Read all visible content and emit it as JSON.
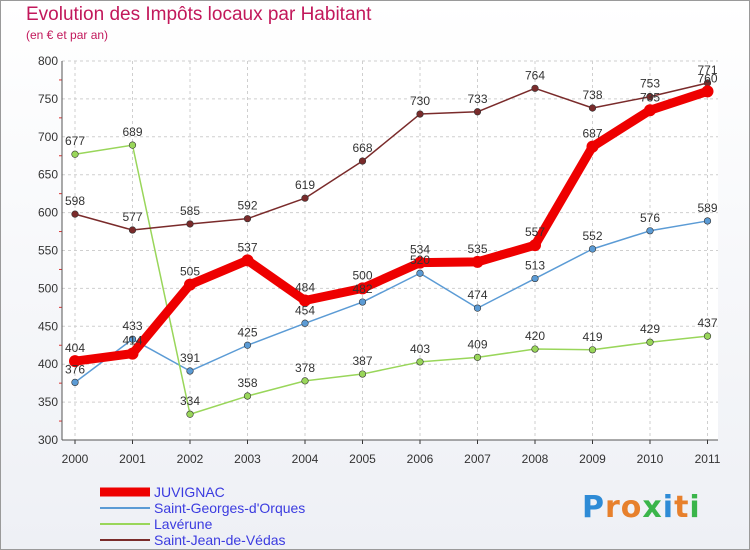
{
  "title": "Evolution des Impôts locaux par Habitant",
  "subtitle": "(en € et par an)",
  "logo": [
    "P",
    "r",
    "o",
    "x",
    "i",
    "t",
    "i"
  ],
  "logo_colors": [
    "#2e8bd6",
    "#e7802c",
    "#e7802c",
    "#3ab54a",
    "#2e8bd6",
    "#e7802c",
    "#3ab54a"
  ],
  "chart_data": {
    "type": "line",
    "title": "Evolution des Impôts locaux par Habitant",
    "subtitle": "(en € et par an)",
    "xlabel": "",
    "ylabel": "",
    "x": [
      "2000",
      "2001",
      "2002",
      "2003",
      "2004",
      "2005",
      "2006",
      "2007",
      "2008",
      "2009",
      "2010",
      "2011"
    ],
    "y_ticks": [
      "300",
      "350",
      "400",
      "450",
      "500",
      "550",
      "600",
      "650",
      "700",
      "750",
      "800"
    ],
    "ylim": [
      300,
      800
    ],
    "grid": true,
    "legend": "bottom-left",
    "series": [
      {
        "name": "JUVIGNAC",
        "color": "#ee0000",
        "emphasis": true,
        "values": [
          404,
          414,
          505,
          537,
          484,
          500,
          534,
          535,
          557,
          687,
          735,
          760
        ]
      },
      {
        "name": "Saint-Georges-d'Orques",
        "color": "#5b9bd5",
        "emphasis": false,
        "values": [
          376,
          433,
          391,
          425,
          454,
          482,
          520,
          474,
          513,
          552,
          576,
          589
        ]
      },
      {
        "name": "Lavérune",
        "color": "#99d65a",
        "emphasis": false,
        "values": [
          677,
          689,
          334,
          358,
          378,
          387,
          403,
          409,
          420,
          419,
          429,
          437
        ]
      },
      {
        "name": "Saint-Jean-de-Védas",
        "color": "#7a2b2b",
        "emphasis": false,
        "values": [
          598,
          577,
          585,
          592,
          619,
          668,
          730,
          733,
          764,
          738,
          753,
          771
        ]
      }
    ]
  }
}
